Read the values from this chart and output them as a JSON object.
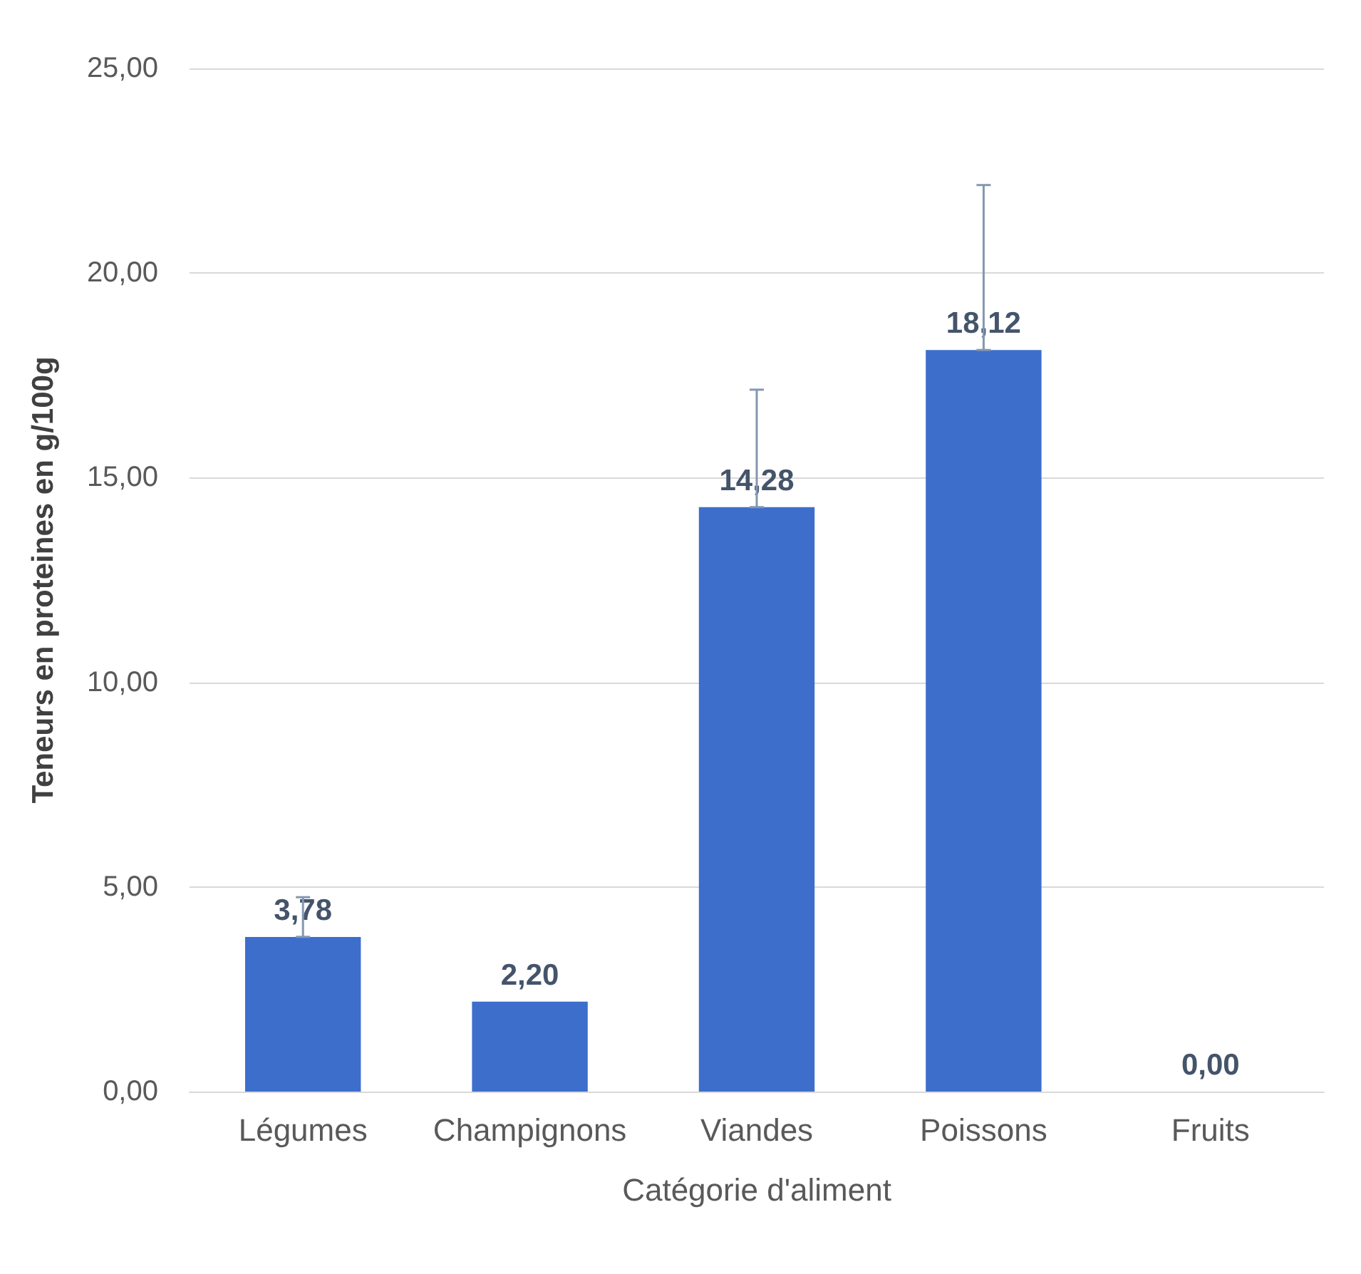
{
  "chart_data": {
    "type": "bar",
    "xlabel": "Catégorie d'aliment",
    "ylabel": "Teneurs en proteines en g/100g",
    "categories": [
      "Légumes",
      "Champignons",
      "Viandes",
      "Poissons",
      "Fruits"
    ],
    "values": [
      3.78,
      2.2,
      14.28,
      18.12,
      0.0
    ],
    "value_labels": [
      "3,78",
      "2,20",
      "14,28",
      "18,12",
      "0,00"
    ],
    "errors": [
      [
        3.78,
        4.75
      ],
      null,
      [
        14.28,
        17.15
      ],
      [
        18.12,
        22.15
      ],
      null
    ],
    "color": "#3d6ecb",
    "ylim": [
      0,
      25
    ],
    "yticks": [
      {
        "value": 0,
        "label": "0,00"
      },
      {
        "value": 5,
        "label": "5,00"
      },
      {
        "value": 10,
        "label": "10,00"
      },
      {
        "value": 15,
        "label": "15,00"
      },
      {
        "value": 20,
        "label": "20,00"
      },
      {
        "value": 25,
        "label": "25,00"
      }
    ],
    "grid": "y"
  }
}
